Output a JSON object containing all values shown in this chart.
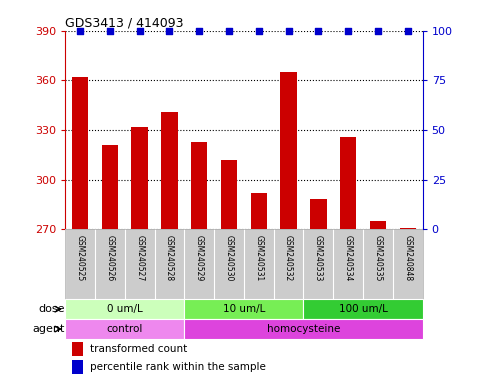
{
  "title": "GDS3413 / 414093",
  "samples": [
    "GSM240525",
    "GSM240526",
    "GSM240527",
    "GSM240528",
    "GSM240529",
    "GSM240530",
    "GSM240531",
    "GSM240532",
    "GSM240533",
    "GSM240534",
    "GSM240535",
    "GSM240848"
  ],
  "transformed_counts": [
    362,
    321,
    332,
    341,
    323,
    312,
    292,
    365,
    288,
    326,
    275,
    271
  ],
  "percentile_ranks": [
    100,
    100,
    100,
    100,
    100,
    100,
    100,
    100,
    100,
    100,
    100,
    100
  ],
  "ylim_left": [
    270,
    390
  ],
  "yticks_left": [
    270,
    300,
    330,
    360,
    390
  ],
  "ylim_right": [
    0,
    100
  ],
  "yticks_right": [
    0,
    25,
    50,
    75,
    100
  ],
  "bar_color": "#cc0000",
  "dot_color": "#0000cc",
  "bar_width": 0.55,
  "dose_groups": [
    {
      "label": "0 um/L",
      "start": 0,
      "end": 4,
      "color": "#ccffbb"
    },
    {
      "label": "10 um/L",
      "start": 4,
      "end": 8,
      "color": "#77ee55"
    },
    {
      "label": "100 um/L",
      "start": 8,
      "end": 12,
      "color": "#33cc33"
    }
  ],
  "agent_groups": [
    {
      "label": "control",
      "start": 0,
      "end": 4,
      "color": "#ee88ee"
    },
    {
      "label": "homocysteine",
      "start": 4,
      "end": 12,
      "color": "#dd44dd"
    }
  ],
  "legend_bar_label": "transformed count",
  "legend_dot_label": "percentile rank within the sample",
  "label_dose": "dose",
  "label_agent": "agent",
  "tick_color_left": "#cc0000",
  "tick_color_right": "#0000cc",
  "background_color": "#ffffff",
  "sample_box_color": "#cccccc",
  "sample_box_edge": "#aaaaaa"
}
